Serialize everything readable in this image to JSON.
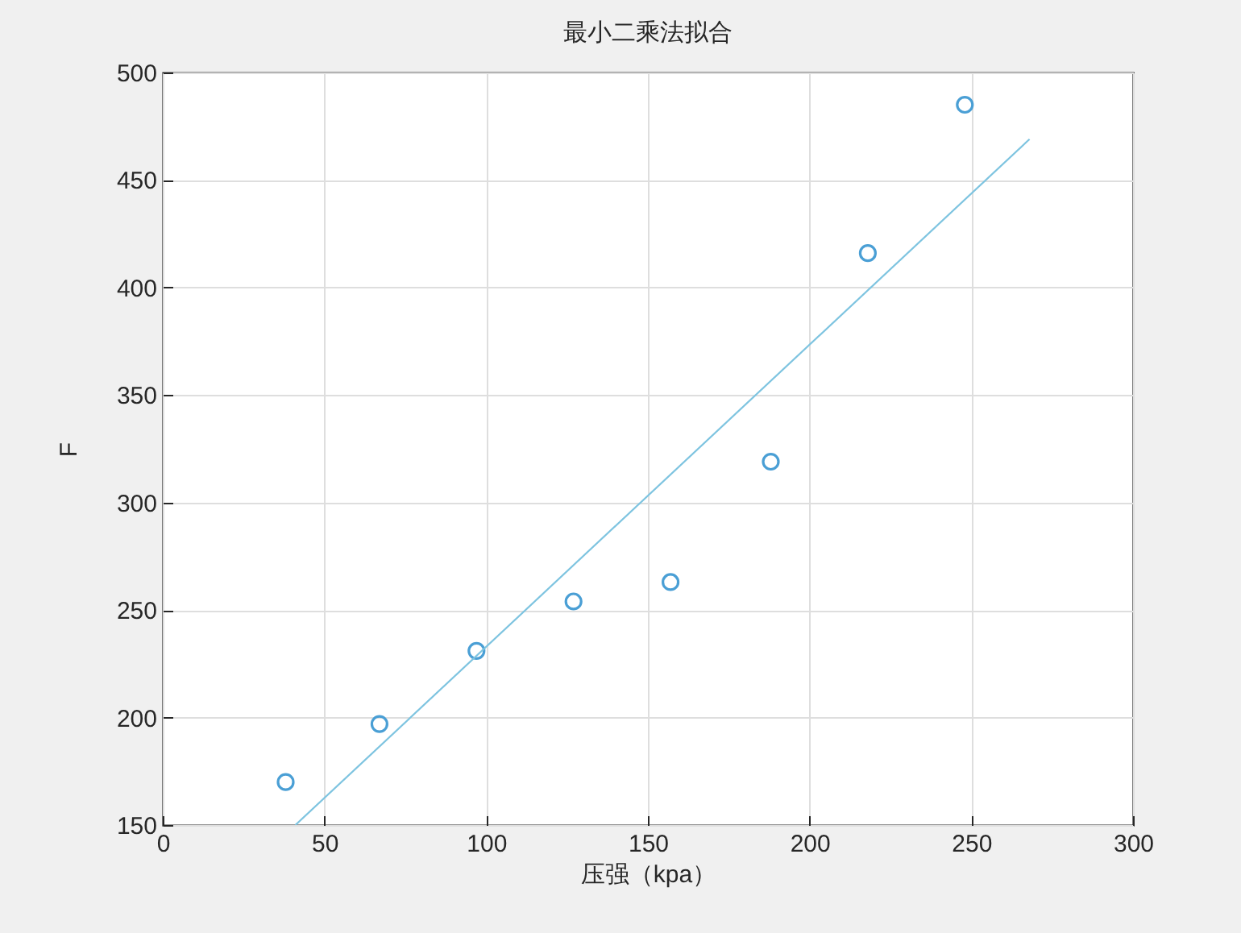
{
  "chart_data": {
    "type": "scatter",
    "title": "最小二乘法拟合",
    "xlabel": "压强（kpa）",
    "ylabel": "F",
    "series": [
      {
        "color": "#4a9fd5",
        "marker": "circle",
        "x": [
          38,
          67,
          97,
          127,
          157,
          188,
          218,
          248
        ],
        "values": [
          170,
          197,
          231,
          254,
          263,
          319,
          416,
          485
        ]
      },
      {
        "type": "line",
        "color": "#7ec4e0",
        "marker": "none",
        "line_style": "solid",
        "x": [
          41,
          268
        ],
        "values": [
          150,
          469
        ]
      }
    ],
    "xlim": [
      0,
      300
    ],
    "xticks": [
      0,
      50,
      100,
      150,
      200,
      250,
      300
    ],
    "ylim": [
      150,
      500
    ],
    "yticks": [
      150,
      200,
      250,
      300,
      350,
      400,
      450,
      500
    ],
    "grid": true
  }
}
